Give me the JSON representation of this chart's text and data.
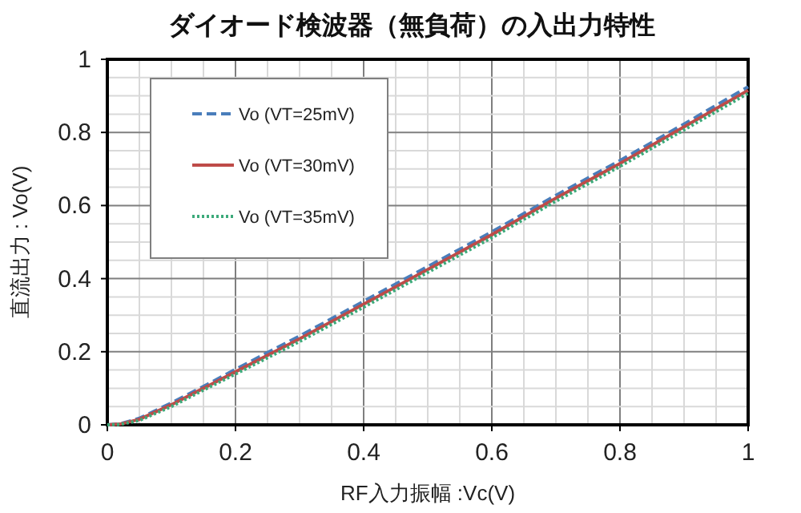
{
  "chart_data": {
    "type": "line",
    "title": "ダイオード検波器（無負荷）の入出力特性",
    "xlabel": "RF入力振幅 :Vc(V)",
    "ylabel": "直流出力 : Vo(V)",
    "xlim": [
      0,
      1
    ],
    "ylim": [
      0,
      1
    ],
    "xticks": [
      0,
      {
        "value": 0.05,
        "label": null
      },
      {
        "value": 0.1,
        "label": null
      },
      {
        "value": 0.15,
        "label": null
      },
      0.2,
      {
        "value": 0.25,
        "label": null
      },
      {
        "value": 0.3,
        "label": null
      },
      {
        "value": 0.35,
        "label": null
      },
      0.4,
      {
        "value": 0.45,
        "label": null
      },
      {
        "value": 0.5,
        "label": null
      },
      {
        "value": 0.55,
        "label": null
      },
      0.6,
      {
        "value": 0.65,
        "label": null
      },
      {
        "value": 0.7,
        "label": null
      },
      {
        "value": 0.75,
        "label": null
      },
      0.8,
      {
        "value": 0.85,
        "label": null
      },
      {
        "value": 0.9,
        "label": null
      },
      {
        "value": 0.95,
        "label": null
      },
      1
    ],
    "yticks": [
      0,
      {
        "value": 0.05,
        "label": null
      },
      {
        "value": 0.1,
        "label": null
      },
      {
        "value": 0.15,
        "label": null
      },
      0.2,
      {
        "value": 0.25,
        "label": null
      },
      {
        "value": 0.3,
        "label": null
      },
      {
        "value": 0.35,
        "label": null
      },
      0.4,
      {
        "value": 0.45,
        "label": null
      },
      {
        "value": 0.5,
        "label": null
      },
      {
        "value": 0.55,
        "label": null
      },
      0.6,
      {
        "value": 0.65,
        "label": null
      },
      {
        "value": 0.7,
        "label": null
      },
      {
        "value": 0.75,
        "label": null
      },
      0.8,
      {
        "value": 0.85,
        "label": null
      },
      {
        "value": 0.9,
        "label": null
      },
      {
        "value": 0.95,
        "label": null
      },
      1
    ],
    "grid": true,
    "legend": "top left",
    "marker": "none",
    "x": [
      0,
      0.02,
      0.05,
      0.1,
      0.15,
      0.2,
      0.3,
      0.4,
      0.5,
      0.6,
      0.7,
      0.8,
      0.9,
      1
    ],
    "series": [
      {
        "name": "Vo (VT=25mV)",
        "color": "#4a7ebb",
        "line_style": "dashed",
        "values": [
          0,
          0.003,
          0.018,
          0.06,
          0.105,
          0.152,
          0.243,
          0.338,
          0.433,
          0.528,
          0.628,
          0.723,
          0.823,
          0.925
        ]
      },
      {
        "name": "Vo (VT=30mV)",
        "color": "#be4b48",
        "line_style": "solid",
        "values": [
          0,
          0.002,
          0.015,
          0.055,
          0.1,
          0.145,
          0.235,
          0.33,
          0.425,
          0.52,
          0.62,
          0.715,
          0.815,
          0.915
        ]
      },
      {
        "name": "Vo (VT=35mV)",
        "color": "#3caa7a",
        "line_style": "dotted",
        "values": [
          0,
          0.001,
          0.012,
          0.05,
          0.095,
          0.139,
          0.228,
          0.322,
          0.417,
          0.512,
          0.612,
          0.707,
          0.807,
          0.907
        ]
      }
    ]
  }
}
